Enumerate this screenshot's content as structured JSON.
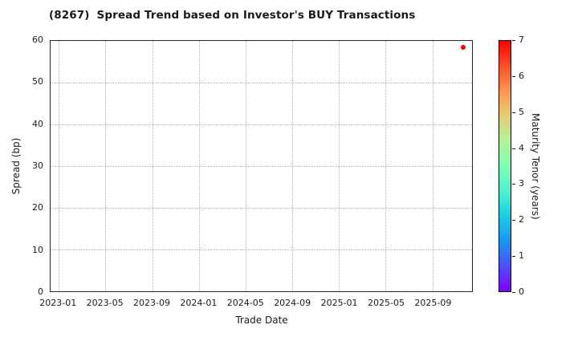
{
  "title": {
    "ticker": "(8267)",
    "text": "Spread Trend based on Investor's BUY Transactions"
  },
  "styles": {
    "background": "#ffffff",
    "text_color": "#1a1a1a",
    "spine_color": "#262626",
    "grid_color": "#b3b3b3",
    "point_color": "#ff0000"
  },
  "chart_data": {
    "type": "scatter",
    "title": "(8267)  Spread Trend based on Investor's BUY Transactions",
    "xlabel": "Trade Date",
    "ylabel": "Spread (bp)",
    "x_tick_labels": [
      "2023-01",
      "2023-05",
      "2023-09",
      "2024-01",
      "2024-05",
      "2024-09",
      "2025-01",
      "2025-05",
      "2025-09"
    ],
    "x_tick_month_offsets": [
      0,
      4,
      8,
      12,
      16,
      20,
      24,
      28,
      32
    ],
    "xlim_month_offsets": [
      -0.7,
      35.4
    ],
    "y_ticks": [
      0,
      10,
      20,
      30,
      40,
      50,
      60
    ],
    "ylim": [
      0,
      60
    ],
    "grid": true,
    "points": [
      {
        "trade_date": "2025-11-20",
        "spread_bp": 58.5,
        "maturity_tenor_years": 7,
        "color": "#ff0000"
      }
    ],
    "colorbar": {
      "label": "Maturity Tenor (years)",
      "min": 0,
      "max": 7,
      "ticks": [
        0,
        1,
        2,
        3,
        4,
        5,
        6,
        7
      ],
      "colormap": "rainbow",
      "gradient_stops": [
        "#8000ff",
        "#4d4ffc",
        "#1a96f3",
        "#1acee3",
        "#4df3ce",
        "#80ffb4",
        "#b3f396",
        "#e6ce74",
        "#ff964f",
        "#ff4f28",
        "#ff0000"
      ]
    }
  }
}
